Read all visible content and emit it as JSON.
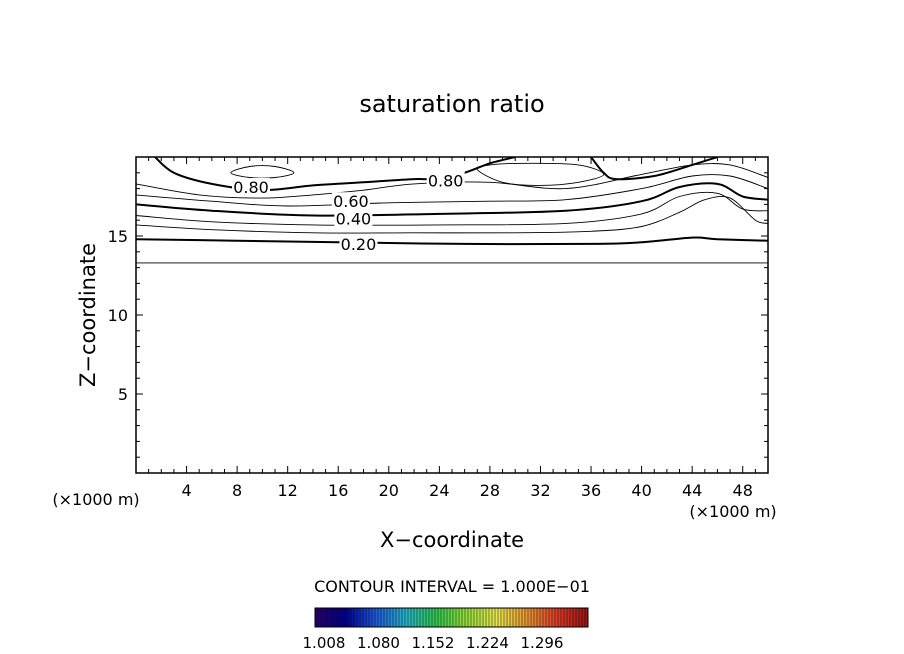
{
  "chart_data": {
    "type": "contour",
    "title": "saturation ratio",
    "xlabel": "X−coordinate",
    "ylabel": "Z−coordinate",
    "x_unit_left": "(×1000 m)",
    "x_unit_right": "(×1000 m)",
    "xlim": [
      0,
      50
    ],
    "ylim": [
      0,
      20
    ],
    "x_ticks": [
      4,
      8,
      12,
      16,
      20,
      24,
      28,
      32,
      36,
      40,
      44,
      48
    ],
    "y_ticks": [
      5,
      10,
      15
    ],
    "contour_interval_text": "CONTOUR INTERVAL = 1.000E−01",
    "contour_labels": [
      {
        "text": "0.80",
        "x": 9.1,
        "z": 18.1
      },
      {
        "text": "0.80",
        "x": 24.5,
        "z": 18.5
      },
      {
        "text": "0.60",
        "x": 17.0,
        "z": 17.2
      },
      {
        "text": "0.40",
        "x": 17.2,
        "z": 16.1
      },
      {
        "text": "0.20",
        "x": 17.6,
        "z": 14.5
      }
    ],
    "contours": [
      {
        "level": 0.1,
        "bold": false,
        "points": [
          [
            0,
            13.3
          ],
          [
            50,
            13.3
          ]
        ]
      },
      {
        "level": 0.2,
        "bold": true,
        "points": [
          [
            0,
            14.8
          ],
          [
            8,
            14.7
          ],
          [
            16,
            14.6
          ],
          [
            26,
            14.5
          ],
          [
            36,
            14.5
          ],
          [
            40,
            14.6
          ],
          [
            44,
            14.9
          ],
          [
            46,
            14.8
          ],
          [
            50,
            14.7
          ]
        ]
      },
      {
        "level": 0.3,
        "bold": false,
        "points": [
          [
            0,
            15.7
          ],
          [
            6,
            15.4
          ],
          [
            14,
            15.2
          ],
          [
            22,
            15.2
          ],
          [
            30,
            15.2
          ],
          [
            36,
            15.3
          ],
          [
            40,
            15.6
          ],
          [
            43,
            16.5
          ],
          [
            45,
            17.3
          ],
          [
            47,
            17.4
          ],
          [
            49,
            16.0
          ],
          [
            50,
            15.8
          ]
        ]
      },
      {
        "level": 0.4,
        "bold": false,
        "points": [
          [
            0,
            16.3
          ],
          [
            6,
            15.9
          ],
          [
            14,
            15.7
          ],
          [
            24,
            15.7
          ],
          [
            34,
            15.8
          ],
          [
            40,
            16.4
          ],
          [
            43,
            17.5
          ],
          [
            46,
            17.7
          ],
          [
            48,
            16.7
          ],
          [
            50,
            16.6
          ]
        ]
      },
      {
        "level": 0.5,
        "bold": true,
        "points": [
          [
            0,
            17.0
          ],
          [
            6,
            16.6
          ],
          [
            14,
            16.3
          ],
          [
            24,
            16.4
          ],
          [
            34,
            16.6
          ],
          [
            40,
            17.2
          ],
          [
            43,
            18.1
          ],
          [
            46,
            18.3
          ],
          [
            48,
            17.5
          ],
          [
            50,
            17.3
          ]
        ]
      },
      {
        "level": 0.6,
        "bold": false,
        "points": [
          [
            0,
            17.6
          ],
          [
            6,
            17.2
          ],
          [
            12,
            16.9
          ],
          [
            20,
            17.1
          ],
          [
            28,
            17.2
          ],
          [
            34,
            17.3
          ],
          [
            40,
            18.0
          ],
          [
            44,
            18.8
          ],
          [
            47,
            18.8
          ],
          [
            50,
            18.0
          ]
        ]
      },
      {
        "level": 0.7,
        "bold": false,
        "points": [
          [
            0,
            18.3
          ],
          [
            5,
            17.6
          ],
          [
            10,
            17.4
          ],
          [
            14,
            17.6
          ],
          [
            18,
            17.9
          ],
          [
            22,
            18.3
          ],
          [
            28,
            18.4
          ],
          [
            34,
            18.0
          ],
          [
            40,
            18.9
          ],
          [
            44,
            19.5
          ],
          [
            47,
            19.5
          ],
          [
            50,
            18.7
          ]
        ]
      },
      {
        "level": 0.8,
        "bold": true,
        "points": [
          [
            1.5,
            20
          ],
          [
            3,
            19.0
          ],
          [
            6,
            18.3
          ],
          [
            10,
            17.9
          ],
          [
            14,
            18.2
          ],
          [
            18,
            18.4
          ],
          [
            22,
            18.6
          ],
          [
            24,
            18.6
          ],
          [
            26,
            19.0
          ],
          [
            28,
            19.6
          ],
          [
            30,
            20
          ]
        ]
      },
      {
        "level": 0.8,
        "bold": true,
        "points": [
          [
            36,
            20
          ],
          [
            37,
            19.0
          ],
          [
            38,
            18.6
          ],
          [
            41,
            18.8
          ],
          [
            44,
            19.5
          ],
          [
            46,
            20
          ]
        ]
      },
      {
        "level": 0.9,
        "bold": false,
        "closed": true,
        "points": [
          [
            7.5,
            19.0
          ],
          [
            9,
            18.7
          ],
          [
            11,
            18.7
          ],
          [
            12.5,
            19.0
          ],
          [
            11,
            19.4
          ],
          [
            9,
            19.4
          ]
        ]
      },
      {
        "level": 0.9,
        "bold": false,
        "closed": true,
        "points": [
          [
            27,
            19.2
          ],
          [
            29,
            18.4
          ],
          [
            32,
            18.2
          ],
          [
            35,
            18.4
          ],
          [
            37,
            18.9
          ],
          [
            35,
            19.5
          ],
          [
            31,
            19.6
          ],
          [
            28,
            19.5
          ]
        ]
      }
    ],
    "colorbar": {
      "tick_labels": [
        "1.008",
        "1.080",
        "1.152",
        "1.224",
        "1.296"
      ],
      "colors": [
        "#2a006e",
        "#00008c",
        "#1e5adc",
        "#28b4c8",
        "#32c850",
        "#96dc3c",
        "#e6e650",
        "#e69632",
        "#dc3c28",
        "#961414"
      ]
    }
  }
}
